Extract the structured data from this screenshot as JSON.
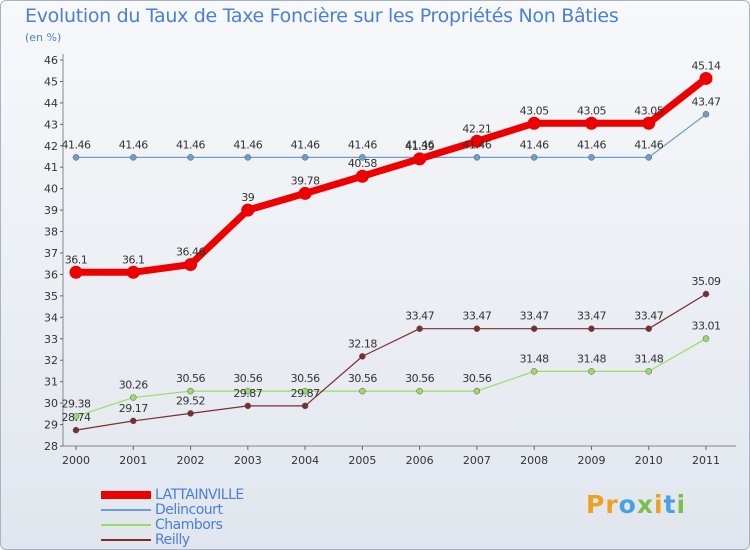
{
  "title": "Evolution du Taux de Taxe Foncière sur les Propriétés Non Bâties",
  "subtitle": "(en %)",
  "logo": "Proxiti",
  "chart_data": {
    "type": "line",
    "title": "Evolution du Taux de Taxe Foncière sur les Propriétés Non Bâties",
    "ylabel": "(en %)",
    "xlabel": "",
    "x": [
      "2000",
      "2001",
      "2002",
      "2003",
      "2004",
      "2005",
      "2006",
      "2007",
      "2008",
      "2009",
      "2010",
      "2011"
    ],
    "ylim": [
      28,
      46
    ],
    "yticks": [
      28,
      29,
      30,
      31,
      32,
      33,
      34,
      35,
      36,
      37,
      38,
      39,
      40,
      41,
      42,
      43,
      44,
      45,
      46
    ],
    "grid": false,
    "legend_position": "bottom-left",
    "series": [
      {
        "name": "LATTAINVILLE",
        "color": "#ee0000",
        "values": [
          36.1,
          36.1,
          36.46,
          39,
          39.78,
          40.58,
          41.39,
          42.21,
          43.05,
          43.05,
          43.05,
          45.14
        ],
        "labels": [
          "36.1",
          "36.1",
          "36.46",
          "39",
          "39.78",
          "40.58",
          "41.39",
          "42.21",
          "43.05",
          "43.05",
          "43.05",
          "45.14"
        ]
      },
      {
        "name": "Delincourt",
        "color": "#6a9fcf",
        "values": [
          41.46,
          41.46,
          41.46,
          41.46,
          41.46,
          41.46,
          41.46,
          41.46,
          41.46,
          41.46,
          41.46,
          43.47
        ],
        "labels": [
          "41.46",
          "41.46",
          "41.46",
          "41.46",
          "41.46",
          "41.46",
          "41.46",
          "41.46",
          "41.46",
          "41.46",
          "41.46",
          "43.47"
        ]
      },
      {
        "name": "Chambors",
        "color": "#99dd66",
        "values": [
          29.38,
          30.26,
          30.56,
          30.56,
          30.56,
          30.56,
          30.56,
          30.56,
          31.48,
          31.48,
          31.48,
          33.01
        ],
        "labels": [
          "29.38",
          "30.26",
          "30.56",
          "30.56",
          "30.56",
          "30.56",
          "30.56",
          "30.56",
          "31.48",
          "31.48",
          "31.48",
          "33.01"
        ]
      },
      {
        "name": "Reilly",
        "color": "#7a2e2e",
        "values": [
          28.74,
          29.17,
          29.52,
          29.87,
          29.87,
          32.18,
          33.47,
          33.47,
          33.47,
          33.47,
          33.47,
          35.09
        ],
        "labels": [
          "28.74",
          "29.17",
          "29.52",
          "29.87",
          "29.87",
          "32.18",
          "33.47",
          "33.47",
          "33.47",
          "33.47",
          "33.47",
          "35.09"
        ]
      }
    ]
  }
}
